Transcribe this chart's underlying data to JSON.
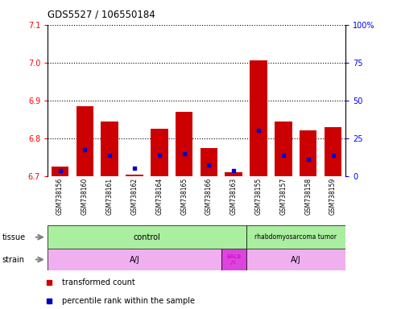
{
  "title": "GDS5527 / 106550184",
  "samples": [
    "GSM738156",
    "GSM738160",
    "GSM738161",
    "GSM738162",
    "GSM738164",
    "GSM738165",
    "GSM738166",
    "GSM738163",
    "GSM738155",
    "GSM738157",
    "GSM738158",
    "GSM738159"
  ],
  "red_values": [
    6.725,
    6.885,
    6.845,
    6.705,
    6.825,
    6.87,
    6.775,
    6.71,
    7.005,
    6.845,
    6.82,
    6.83
  ],
  "blue_values": [
    6.715,
    6.77,
    6.755,
    6.72,
    6.755,
    6.76,
    6.73,
    6.715,
    6.82,
    6.755,
    6.745,
    6.755
  ],
  "ymin": 6.7,
  "ymax": 7.1,
  "yticks_left": [
    6.7,
    6.8,
    6.9,
    7.0,
    7.1
  ],
  "yticks_right": [
    0,
    25,
    50,
    75,
    100
  ],
  "yticks_right_labels": [
    "0",
    "25",
    "50",
    "75",
    "100%"
  ],
  "bar_color": "#cc0000",
  "dot_color": "#0000cc",
  "label_bg": "#c8c8c8",
  "tissue_control_color": "#aaeea0",
  "tissue_tumor_color": "#aaeea0",
  "strain_aj_color": "#f0b0f0",
  "strain_balb_color": "#dd44dd",
  "strain_balb_text_color": "#cc00cc",
  "tissue_label": "tissue",
  "strain_label": "strain",
  "legend_red": "transformed count",
  "legend_blue": "percentile rank within the sample",
  "bar_width": 0.7
}
